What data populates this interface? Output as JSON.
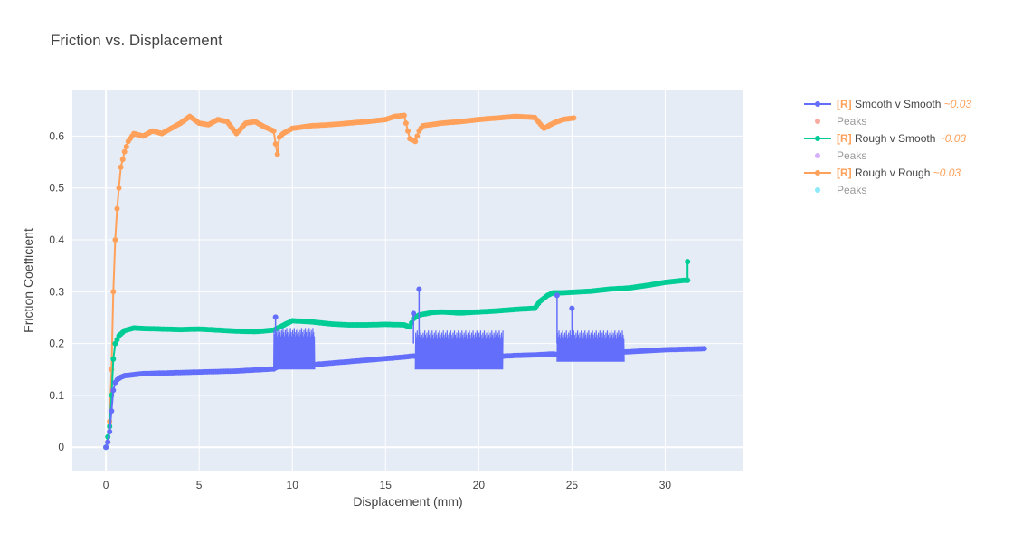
{
  "chart_data": {
    "type": "scatter",
    "title": "Friction vs. Displacement",
    "xlabel": "Displacement (mm)",
    "ylabel": "Friction Coefficient",
    "xlim": [
      -1.8,
      34.2
    ],
    "ylim": [
      -0.045,
      0.688
    ],
    "xticks": [
      0,
      5,
      10,
      15,
      20,
      25,
      30
    ],
    "yticks": [
      0,
      0.1,
      0.2,
      0.3,
      0.4,
      0.5,
      0.6
    ],
    "grid": true,
    "legend_position": "top-right",
    "legend": [
      {
        "prefix": "[R]",
        "name": "Smooth v Smooth",
        "suffix": "~0.03",
        "color": "#636efa",
        "mode": "lines+markers"
      },
      {
        "name": "Peaks",
        "color": "#ef553b",
        "mode": "markers",
        "faded": true
      },
      {
        "prefix": "[R]",
        "name": "Rough v Smooth",
        "suffix": "~0.03",
        "color": "#00cc96",
        "mode": "lines+markers"
      },
      {
        "name": "Peaks",
        "color": "#ab63fa",
        "mode": "markers",
        "faded": true
      },
      {
        "prefix": "[R]",
        "name": "Rough v Rough",
        "suffix": "~0.03",
        "color": "#ffa15a",
        "mode": "lines+markers"
      },
      {
        "name": "Peaks",
        "color": "#19d3f3",
        "mode": "markers",
        "faded": true
      }
    ],
    "series": [
      {
        "name": "Smooth v Smooth",
        "color": "#636efa",
        "x": [
          0,
          0.1,
          0.2,
          0.3,
          0.4,
          0.5,
          0.6,
          0.8,
          1.0,
          1.5,
          2,
          3,
          4,
          5,
          6,
          7,
          8,
          9.0,
          9.2,
          9.5,
          10,
          11,
          12,
          13,
          14,
          15,
          16,
          16.5,
          17,
          18,
          19,
          20,
          21,
          22,
          23,
          24,
          24.5,
          25,
          26,
          27,
          28,
          29,
          30,
          31,
          32.1
        ],
        "y": [
          0,
          0.01,
          0.03,
          0.07,
          0.11,
          0.125,
          0.13,
          0.135,
          0.138,
          0.14,
          0.142,
          0.143,
          0.144,
          0.145,
          0.146,
          0.147,
          0.149,
          0.151,
          0.155,
          0.158,
          0.157,
          0.159,
          0.162,
          0.165,
          0.168,
          0.171,
          0.174,
          0.176,
          0.172,
          0.17,
          0.171,
          0.173,
          0.175,
          0.177,
          0.178,
          0.18,
          0.176,
          0.177,
          0.18,
          0.182,
          0.184,
          0.186,
          0.188,
          0.189,
          0.19
        ]
      },
      {
        "name": "Rough v Smooth",
        "color": "#00cc96",
        "x": [
          0,
          0.1,
          0.2,
          0.3,
          0.4,
          0.5,
          0.7,
          1.0,
          1.5,
          2,
          3,
          4,
          5,
          6,
          7,
          8,
          9,
          10,
          11,
          12,
          13,
          14,
          15,
          16,
          16.3,
          16.5,
          16.8,
          17.5,
          18,
          19,
          20,
          21,
          22,
          23,
          23.3,
          23.7,
          24,
          24.5,
          25,
          26,
          27,
          28,
          29,
          30,
          31,
          31.2,
          31.2,
          31.2
        ],
        "y": [
          0,
          0.02,
          0.04,
          0.1,
          0.17,
          0.2,
          0.215,
          0.225,
          0.23,
          0.229,
          0.228,
          0.227,
          0.228,
          0.226,
          0.224,
          0.223,
          0.226,
          0.244,
          0.242,
          0.238,
          0.236,
          0.236,
          0.237,
          0.236,
          0.232,
          0.248,
          0.255,
          0.26,
          0.261,
          0.259,
          0.261,
          0.263,
          0.266,
          0.268,
          0.282,
          0.293,
          0.298,
          0.298,
          0.299,
          0.301,
          0.305,
          0.307,
          0.312,
          0.318,
          0.322,
          0.322,
          0.358,
          0.322
        ]
      },
      {
        "name": "Rough v Rough",
        "color": "#ffa15a",
        "x": [
          0,
          0.1,
          0.2,
          0.3,
          0.4,
          0.5,
          0.6,
          0.7,
          0.8,
          1.0,
          1.2,
          1.5,
          2,
          2.5,
          3,
          3.5,
          4,
          4.5,
          5,
          5.5,
          6,
          6.5,
          7,
          7.5,
          8,
          8.5,
          9.0,
          9.1,
          9.2,
          9.3,
          9.5,
          10,
          11,
          12,
          13,
          14,
          15,
          15.5,
          16,
          16.3,
          16.6,
          16.8,
          17,
          18,
          19,
          20,
          21,
          22,
          23,
          23.5,
          24,
          24.5,
          25.1
        ],
        "y": [
          0,
          0.01,
          0.05,
          0.15,
          0.3,
          0.4,
          0.46,
          0.5,
          0.54,
          0.57,
          0.59,
          0.605,
          0.6,
          0.61,
          0.605,
          0.615,
          0.625,
          0.638,
          0.625,
          0.622,
          0.632,
          0.628,
          0.605,
          0.625,
          0.628,
          0.618,
          0.61,
          0.585,
          0.565,
          0.598,
          0.605,
          0.615,
          0.62,
          0.622,
          0.625,
          0.628,
          0.632,
          0.638,
          0.64,
          0.595,
          0.59,
          0.61,
          0.62,
          0.625,
          0.628,
          0.632,
          0.635,
          0.638,
          0.636,
          0.615,
          0.625,
          0.632,
          0.635
        ]
      }
    ],
    "oscillation_bands": [
      {
        "series": "Smooth v Smooth",
        "x_range": [
          9.0,
          11.2
        ],
        "y_range": [
          0.15,
          0.23
        ]
      },
      {
        "series": "Smooth v Smooth",
        "x_range": [
          16.6,
          21.3
        ],
        "y_range": [
          0.15,
          0.225
        ]
      },
      {
        "series": "Smooth v Smooth",
        "x_range": [
          24.2,
          27.8
        ],
        "y_range": [
          0.165,
          0.225
        ]
      }
    ],
    "spikes": [
      {
        "series": "Smooth v Smooth",
        "x": 9.1,
        "y": 0.251
      },
      {
        "series": "Smooth v Smooth",
        "x": 16.5,
        "y": 0.258
      },
      {
        "series": "Smooth v Smooth",
        "x": 16.8,
        "y": 0.305
      },
      {
        "series": "Smooth v Smooth",
        "x": 24.2,
        "y": 0.293
      },
      {
        "series": "Smooth v Smooth",
        "x": 25.0,
        "y": 0.268
      }
    ]
  }
}
